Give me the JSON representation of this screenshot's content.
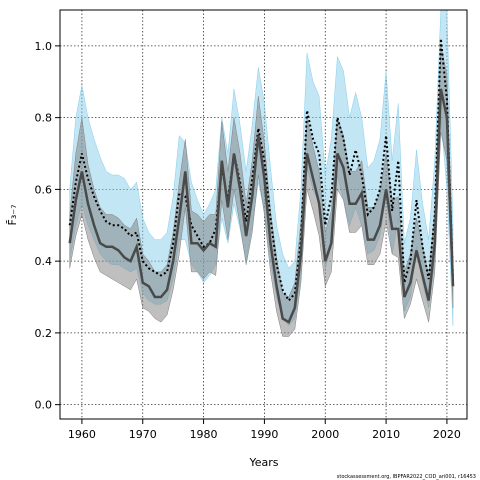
{
  "chart_data": {
    "type": "band-line",
    "xlabel": "Years",
    "ylabel": "F̄₃₋₇",
    "footnote": "stockassessment.org, IBPFAR2022_COD_ari001, r16453",
    "xlim": [
      1956.4,
      2023.3
    ],
    "ylim": [
      -0.04,
      1.1
    ],
    "xticks": [
      1960,
      1970,
      1980,
      1990,
      2000,
      2010,
      2020
    ],
    "yticks": [
      {
        "value": 0,
        "label": "0.0"
      },
      {
        "value": 0.2,
        "label": "0.2"
      },
      {
        "value": 0.4,
        "label": "0.4"
      },
      {
        "value": 0.6,
        "label": "0.6"
      },
      {
        "value": 0.8,
        "label": "0.8"
      },
      {
        "value": 1,
        "label": "1.0"
      }
    ],
    "grid": true,
    "x": [
      1958,
      1959,
      1960,
      1961,
      1962,
      1963,
      1964,
      1965,
      1966,
      1967,
      1968,
      1969,
      1970,
      1971,
      1972,
      1973,
      1974,
      1975,
      1976,
      1977,
      1978,
      1979,
      1980,
      1981,
      1982,
      1983,
      1984,
      1985,
      1986,
      1987,
      1988,
      1989,
      1990,
      1991,
      1992,
      1993,
      1994,
      1995,
      1996,
      1997,
      1998,
      1999,
      2000,
      2001,
      2002,
      2003,
      2004,
      2005,
      2006,
      2007,
      2008,
      2009,
      2010,
      2011,
      2012,
      2013,
      2014,
      2015,
      2016,
      2017,
      2018,
      2019,
      2020,
      2021
    ],
    "series": [
      {
        "color": "#87ceeb",
        "line_color": "#000000",
        "dash": true,
        "values": [
          0.5,
          0.62,
          0.7,
          0.63,
          0.58,
          0.54,
          0.51,
          0.5,
          0.5,
          0.49,
          0.47,
          0.48,
          0.4,
          0.38,
          0.37,
          0.36,
          0.37,
          0.45,
          0.59,
          0.58,
          0.5,
          0.47,
          0.44,
          0.45,
          0.49,
          0.66,
          0.57,
          0.7,
          0.62,
          0.51,
          0.63,
          0.77,
          0.68,
          0.52,
          0.39,
          0.32,
          0.29,
          0.31,
          0.46,
          0.82,
          0.74,
          0.7,
          0.5,
          0.58,
          0.8,
          0.74,
          0.64,
          0.71,
          0.64,
          0.53,
          0.55,
          0.6,
          0.75,
          0.54,
          0.68,
          0.34,
          0.4,
          0.57,
          0.44,
          0.35,
          0.53,
          1.02,
          0.85,
          0.35
        ],
        "lower": [
          0.4,
          0.5,
          0.56,
          0.5,
          0.46,
          0.42,
          0.4,
          0.39,
          0.39,
          0.38,
          0.37,
          0.38,
          0.31,
          0.29,
          0.28,
          0.28,
          0.29,
          0.35,
          0.46,
          0.46,
          0.39,
          0.37,
          0.34,
          0.36,
          0.39,
          0.52,
          0.45,
          0.56,
          0.49,
          0.4,
          0.5,
          0.62,
          0.54,
          0.4,
          0.3,
          0.24,
          0.22,
          0.24,
          0.36,
          0.66,
          0.6,
          0.56,
          0.38,
          0.44,
          0.64,
          0.57,
          0.5,
          0.55,
          0.5,
          0.42,
          0.43,
          0.47,
          0.58,
          0.42,
          0.52,
          0.26,
          0.3,
          0.44,
          0.34,
          0.27,
          0.4,
          0.8,
          0.6,
          0.22
        ],
        "upper": [
          0.6,
          0.8,
          0.89,
          0.8,
          0.74,
          0.69,
          0.65,
          0.64,
          0.64,
          0.63,
          0.6,
          0.62,
          0.52,
          0.48,
          0.46,
          0.46,
          0.48,
          0.58,
          0.75,
          0.73,
          0.62,
          0.57,
          0.53,
          0.56,
          0.6,
          0.8,
          0.7,
          0.88,
          0.78,
          0.65,
          0.78,
          0.94,
          0.84,
          0.66,
          0.5,
          0.42,
          0.38,
          0.4,
          0.6,
          0.98,
          0.9,
          0.86,
          0.64,
          0.74,
          0.97,
          0.93,
          0.8,
          0.87,
          0.8,
          0.66,
          0.68,
          0.74,
          0.93,
          0.68,
          0.84,
          0.45,
          0.52,
          0.71,
          0.56,
          0.46,
          0.68,
          1.1,
          1.1,
          0.5
        ]
      },
      {
        "color": "#808080",
        "line_color": "#4a4a4a",
        "dash": false,
        "values": [
          0.45,
          0.57,
          0.65,
          0.56,
          0.5,
          0.45,
          0.44,
          0.44,
          0.43,
          0.41,
          0.4,
          0.44,
          0.34,
          0.33,
          0.3,
          0.3,
          0.32,
          0.4,
          0.52,
          0.65,
          0.45,
          0.45,
          0.43,
          0.45,
          0.44,
          0.68,
          0.55,
          0.7,
          0.6,
          0.47,
          0.58,
          0.75,
          0.63,
          0.45,
          0.33,
          0.24,
          0.23,
          0.27,
          0.42,
          0.7,
          0.63,
          0.56,
          0.4,
          0.45,
          0.7,
          0.66,
          0.56,
          0.56,
          0.59,
          0.46,
          0.46,
          0.5,
          0.6,
          0.49,
          0.49,
          0.3,
          0.34,
          0.43,
          0.36,
          0.29,
          0.45,
          0.88,
          0.8,
          0.33
        ],
        "lower": [
          0.38,
          0.47,
          0.53,
          0.46,
          0.41,
          0.37,
          0.36,
          0.35,
          0.34,
          0.33,
          0.32,
          0.35,
          0.27,
          0.26,
          0.24,
          0.23,
          0.25,
          0.32,
          0.42,
          0.55,
          0.37,
          0.37,
          0.35,
          0.37,
          0.36,
          0.57,
          0.46,
          0.6,
          0.5,
          0.39,
          0.48,
          0.64,
          0.53,
          0.37,
          0.26,
          0.19,
          0.19,
          0.21,
          0.34,
          0.6,
          0.54,
          0.47,
          0.33,
          0.37,
          0.6,
          0.57,
          0.48,
          0.48,
          0.5,
          0.39,
          0.39,
          0.42,
          0.51,
          0.42,
          0.41,
          0.24,
          0.28,
          0.35,
          0.29,
          0.23,
          0.37,
          0.76,
          0.68,
          0.27
        ],
        "upper": [
          0.53,
          0.7,
          0.8,
          0.67,
          0.6,
          0.55,
          0.53,
          0.53,
          0.52,
          0.5,
          0.49,
          0.52,
          0.42,
          0.4,
          0.37,
          0.37,
          0.39,
          0.48,
          0.62,
          0.74,
          0.54,
          0.53,
          0.51,
          0.53,
          0.53,
          0.79,
          0.65,
          0.8,
          0.7,
          0.56,
          0.68,
          0.86,
          0.73,
          0.54,
          0.41,
          0.31,
          0.3,
          0.34,
          0.51,
          0.8,
          0.72,
          0.65,
          0.48,
          0.54,
          0.8,
          0.75,
          0.65,
          0.65,
          0.68,
          0.55,
          0.55,
          0.59,
          0.7,
          0.57,
          0.58,
          0.37,
          0.42,
          0.52,
          0.44,
          0.36,
          0.54,
          1.0,
          0.92,
          0.4
        ]
      }
    ]
  }
}
